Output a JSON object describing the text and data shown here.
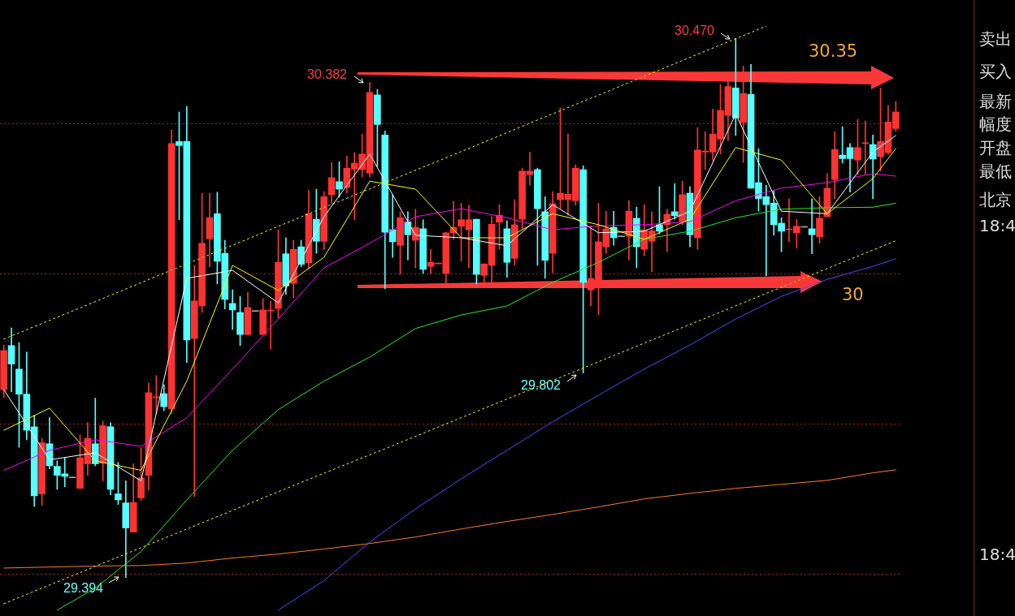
{
  "chart_data": {
    "type": "candlestick",
    "categories": [
      null,
      null,
      null,
      null,
      null,
      null,
      null,
      null,
      null,
      null,
      null,
      null,
      null,
      null,
      null,
      null,
      null,
      null,
      null,
      null,
      null,
      null,
      null,
      null,
      null,
      null,
      null,
      null,
      null,
      null,
      null,
      null,
      null,
      null,
      null,
      null,
      null,
      null,
      null,
      null,
      null,
      null,
      null,
      null,
      null,
      null,
      null,
      null,
      null,
      null,
      null,
      null,
      null,
      null,
      null,
      null,
      null,
      null,
      null,
      null,
      null,
      null,
      null,
      null,
      null,
      null,
      null,
      null,
      null,
      null,
      null,
      null,
      null,
      null,
      null,
      null,
      null,
      null,
      null,
      null,
      null,
      null,
      null,
      null,
      null,
      null,
      null,
      null,
      null,
      null,
      null,
      null,
      null,
      null,
      null,
      null,
      null,
      null,
      null,
      null,
      null,
      null,
      null,
      null,
      null,
      null,
      null,
      null,
      null,
      null,
      null,
      null,
      null,
      null,
      null,
      null,
      null,
      null
    ],
    "ohlc": [
      [
        29.769,
        29.858,
        29.753,
        29.847
      ],
      [
        29.857,
        29.892,
        29.765,
        29.82
      ],
      [
        29.81,
        29.863,
        29.654,
        29.76
      ],
      [
        29.76,
        29.844,
        29.669,
        29.688
      ],
      [
        29.695,
        29.718,
        29.536,
        29.557
      ],
      [
        29.561,
        29.672,
        29.538,
        29.663
      ],
      [
        29.661,
        29.713,
        29.611,
        29.617
      ],
      [
        29.616,
        29.627,
        29.57,
        29.598
      ],
      [
        29.601,
        29.633,
        29.575,
        29.596
      ],
      [
        29.593,
        29.593,
        29.593,
        29.593
      ],
      [
        29.572,
        29.679,
        29.572,
        29.633
      ],
      [
        29.621,
        29.703,
        29.598,
        29.672
      ],
      [
        29.661,
        29.752,
        29.617,
        29.621
      ],
      [
        29.622,
        29.706,
        29.587,
        29.697
      ],
      [
        29.695,
        29.703,
        29.559,
        29.57
      ],
      [
        29.561,
        29.624,
        29.54,
        29.549
      ],
      [
        29.543,
        29.587,
        29.394,
        29.493
      ],
      [
        29.485,
        29.621,
        29.485,
        29.544
      ],
      [
        29.553,
        29.653,
        29.548,
        29.593
      ],
      [
        29.598,
        29.782,
        29.569,
        29.763
      ],
      [
        29.753,
        29.797,
        29.721,
        29.753
      ],
      [
        29.761,
        29.779,
        29.727,
        29.735
      ],
      [
        29.731,
        30.287,
        29.721,
        30.26
      ],
      [
        30.264,
        30.323,
        30.108,
        30.256
      ],
      [
        30.264,
        30.334,
        29.823,
        29.868
      ],
      [
        29.871,
        30.017,
        29.556,
        29.946
      ],
      [
        29.936,
        30.161,
        29.923,
        30.061
      ],
      [
        30.07,
        30.161,
        30.014,
        30.112
      ],
      [
        30.12,
        30.163,
        29.98,
        30.025
      ],
      [
        30.041,
        30.067,
        29.93,
        29.949
      ],
      [
        29.941,
        29.968,
        29.889,
        29.928
      ],
      [
        29.923,
        29.955,
        29.857,
        29.879
      ],
      [
        29.879,
        29.963,
        29.879,
        29.933
      ],
      [
        29.925,
        29.925,
        29.925,
        29.925
      ],
      [
        29.879,
        29.951,
        29.879,
        29.928
      ],
      [
        29.926,
        29.946,
        29.85,
        29.926
      ],
      [
        29.931,
        30.088,
        29.912,
        30.023
      ],
      [
        30.04,
        30.072,
        29.959,
        29.976
      ],
      [
        29.981,
        30.067,
        29.952,
        30.049
      ],
      [
        30.054,
        30.067,
        30.014,
        30.019
      ],
      [
        30.022,
        30.167,
        30.01,
        30.12
      ],
      [
        30.109,
        30.169,
        30.041,
        30.065
      ],
      [
        30.065,
        30.164,
        30.048,
        30.154
      ],
      [
        30.158,
        30.222,
        30.141,
        30.192
      ],
      [
        30.184,
        30.224,
        30.153,
        30.169
      ],
      [
        30.172,
        30.235,
        30.161,
        30.211
      ],
      [
        30.209,
        30.242,
        30.108,
        30.221
      ],
      [
        30.208,
        30.279,
        30.193,
        30.239
      ],
      [
        30.201,
        30.382,
        30.193,
        30.362
      ],
      [
        30.357,
        30.368,
        30.214,
        30.298
      ],
      [
        30.277,
        30.285,
        29.97,
        30.083
      ],
      [
        30.088,
        30.158,
        30.033,
        30.064
      ],
      [
        30.057,
        30.124,
        29.999,
        30.112
      ],
      [
        30.104,
        30.124,
        30.028,
        30.078
      ],
      [
        30.067,
        30.129,
        30.012,
        30.093
      ],
      [
        30.09,
        30.108,
        30.001,
        30.009
      ],
      [
        30.015,
        30.049,
        30.001,
        30.023
      ],
      [
        30.02,
        30.02,
        30.02,
        30.02
      ],
      [
        30.001,
        30.083,
        29.981,
        30.082
      ],
      [
        30.082,
        30.145,
        30.069,
        30.093
      ],
      [
        30.095,
        30.141,
        30.025,
        30.108
      ],
      [
        30.088,
        30.137,
        30.012,
        30.108
      ],
      [
        30.109,
        30.109,
        29.98,
        29.999
      ],
      [
        29.997,
        30.02,
        29.98,
        30.02
      ],
      [
        30.017,
        30.114,
        29.98,
        30.099
      ],
      [
        30.103,
        30.138,
        30.049,
        30.117
      ],
      [
        30.09,
        30.106,
        29.993,
        30.023
      ],
      [
        30.031,
        30.148,
        30.017,
        30.098
      ],
      [
        30.109,
        30.211,
        30.09,
        30.205
      ],
      [
        30.198,
        30.243,
        30.177,
        30.205
      ],
      [
        30.208,
        30.211,
        30.017,
        30.13
      ],
      [
        30.124,
        30.154,
        29.991,
        30.027
      ],
      [
        30.041,
        30.164,
        30.002,
        30.14
      ],
      [
        30.148,
        30.331,
        30.13,
        30.161
      ],
      [
        30.148,
        30.279,
        30.117,
        30.159
      ],
      [
        30.146,
        30.218,
        30.137,
        30.211
      ],
      [
        30.208,
        30.216,
        29.802,
        29.983
      ],
      [
        29.968,
        30.096,
        29.936,
        29.991
      ],
      [
        29.972,
        30.141,
        29.918,
        30.064
      ],
      [
        30.054,
        30.125,
        30.041,
        30.09
      ],
      [
        30.093,
        30.125,
        30.057,
        30.072
      ],
      [
        30.074,
        30.074,
        30.074,
        30.074
      ],
      [
        30.075,
        30.146,
        30.028,
        30.125
      ],
      [
        30.111,
        30.133,
        30.012,
        30.054
      ],
      [
        30.049,
        30.138,
        30.036,
        30.088
      ],
      [
        30.065,
        30.124,
        30.004,
        30.086
      ],
      [
        30.098,
        30.174,
        30.08,
        30.085
      ],
      [
        30.098,
        30.129,
        30.044,
        30.119
      ],
      [
        30.124,
        30.18,
        30.109,
        30.116
      ],
      [
        30.104,
        30.185,
        30.098,
        30.158
      ],
      [
        30.161,
        30.174,
        30.054,
        30.078
      ],
      [
        30.072,
        30.292,
        30.049,
        30.247
      ],
      [
        30.243,
        30.284,
        30.208,
        30.245
      ],
      [
        30.243,
        30.329,
        30.226,
        30.279
      ],
      [
        30.269,
        30.378,
        30.239,
        30.326
      ],
      [
        30.316,
        30.386,
        30.266,
        30.374
      ],
      [
        30.371,
        30.47,
        30.276,
        30.311
      ],
      [
        30.302,
        30.415,
        30.222,
        30.36
      ],
      [
        30.358,
        30.418,
        30.171,
        30.171
      ],
      [
        30.182,
        30.25,
        30.125,
        30.15
      ],
      [
        30.154,
        30.177,
        29.996,
        30.138
      ],
      [
        30.141,
        30.166,
        30.077,
        30.098
      ],
      [
        30.101,
        30.112,
        30.044,
        30.085
      ],
      [
        30.088,
        30.15,
        30.064,
        30.088
      ],
      [
        30.082,
        30.109,
        30.051,
        30.095
      ],
      [
        30.093,
        30.093,
        30.093,
        30.093
      ],
      [
        30.09,
        30.15,
        30.04,
        30.078
      ],
      [
        30.074,
        30.154,
        30.061,
        30.111
      ],
      [
        30.114,
        30.2,
        30.114,
        30.171
      ],
      [
        30.188,
        30.284,
        30.15,
        30.248
      ],
      [
        30.237,
        30.294,
        30.221,
        30.23
      ],
      [
        30.252,
        30.26,
        30.163,
        30.23
      ],
      [
        30.227,
        30.308,
        30.198,
        30.252
      ],
      [
        30.26,
        30.305,
        30.198,
        30.26
      ],
      [
        30.258,
        30.277,
        30.15,
        30.229
      ],
      [
        30.234,
        30.371,
        30.205,
        30.264
      ],
      [
        30.242,
        30.336,
        30.239,
        30.303
      ],
      [
        30.29,
        30.344,
        30.284,
        30.323
      ]
    ],
    "colors": [
      "#ff3232",
      "#54ffff",
      "#54ffff",
      "#54ffff",
      "#54ffff",
      "#ff3232",
      "#54ffff",
      "#54ffff",
      "#54ffff",
      "#a0a0a0",
      "#ff3232",
      "#ff3232",
      "#54ffff",
      "#ff3232",
      "#54ffff",
      "#54ffff",
      "#54ffff",
      "#ff3232",
      "#ff3232",
      "#ff3232",
      "#ff3232",
      "#54ffff",
      "#ff3232",
      "#54ffff",
      "#54ffff",
      "#ff3232",
      "#ff3232",
      "#ff3232",
      "#54ffff",
      "#54ffff",
      "#54ffff",
      "#54ffff",
      "#ff3232",
      "#a0a0a0",
      "#ff3232",
      "#ff3232",
      "#ff3232",
      "#54ffff",
      "#ff3232",
      "#54ffff",
      "#ff3232",
      "#54ffff",
      "#ff3232",
      "#ff3232",
      "#54ffff",
      "#ff3232",
      "#ff3232",
      "#ff3232",
      "#ff3232",
      "#54ffff",
      "#54ffff",
      "#54ffff",
      "#ff3232",
      "#54ffff",
      "#ff3232",
      "#54ffff",
      "#ff3232",
      "#ff3232",
      "#ff3232",
      "#ff3232",
      "#ff3232",
      "#ff3232",
      "#54ffff",
      "#ff3232",
      "#ff3232",
      "#ff3232",
      "#54ffff",
      "#ff3232",
      "#ff3232",
      "#ff3232",
      "#54ffff",
      "#54ffff",
      "#ff3232",
      "#ff3232",
      "#ff3232",
      "#ff3232",
      "#54ffff",
      "#ff3232",
      "#ff3232",
      "#ff3232",
      "#54ffff",
      "#a0a0a0",
      "#ff3232",
      "#54ffff",
      "#ff3232",
      "#ff3232",
      "#54ffff",
      "#ff3232",
      "#54ffff",
      "#ff3232",
      "#54ffff",
      "#ff3232",
      "#ff3232",
      "#ff3232",
      "#ff3232",
      "#ff3232",
      "#54ffff",
      "#ff3232",
      "#54ffff",
      "#54ffff",
      "#54ffff",
      "#54ffff",
      "#54ffff",
      "#ff3232",
      "#ff3232",
      "#a0a0a0",
      "#54ffff",
      "#ff3232",
      "#ff3232",
      "#ff3232",
      "#54ffff",
      "#54ffff",
      "#ff3232",
      "#ff3232",
      "#54ffff",
      "#ff3232",
      "#ff3232",
      "#ff3232"
    ],
    "series": [
      {
        "type": "line",
        "color": "#ffffff",
        "line_style": "solid",
        "values": [
          29.769,
          null,
          null,
          null,
          null,
          null,
          29.629,
          null,
          null,
          null,
          null,
          null,
          29.643,
          null,
          null,
          null,
          null,
          null,
          29.587,
          null,
          null,
          null,
          null,
          null,
          29.991,
          null,
          null,
          null,
          null,
          null,
          30.007,
          null,
          null,
          null,
          null,
          null,
          29.942,
          null,
          null,
          null,
          null,
          null,
          30.114,
          null,
          null,
          null,
          null,
          null,
          30.239,
          null,
          null,
          null,
          null,
          null,
          30.077,
          null,
          null,
          null,
          null,
          null,
          30.072,
          null,
          null,
          null,
          null,
          null,
          30.056,
          null,
          null,
          null,
          null,
          null,
          30.138,
          null,
          null,
          null,
          null,
          null,
          30.082,
          null,
          null,
          null,
          null,
          null,
          30.085,
          null,
          null,
          null,
          null,
          null,
          30.125,
          null,
          null,
          null,
          null,
          null,
          30.319,
          null,
          null,
          null,
          null,
          null,
          30.125,
          null,
          null,
          null,
          null,
          null,
          30.12,
          null,
          null,
          null,
          null,
          null,
          30.243,
          null,
          null,
          30.276
        ]
      },
      {
        "type": "line",
        "color": "#ffff00",
        "line_style": "solid",
        "values": [
          29.688,
          null,
          null,
          null,
          null,
          null,
          29.732,
          null,
          null,
          null,
          null,
          null,
          29.627,
          null,
          null,
          null,
          null,
          null,
          29.608,
          null,
          null,
          null,
          null,
          null,
          29.786,
          null,
          null,
          null,
          null,
          null,
          30.017,
          null,
          null,
          null,
          null,
          null,
          29.967,
          null,
          null,
          null,
          null,
          null,
          30.033,
          null,
          null,
          null,
          null,
          null,
          30.185,
          null,
          null,
          null,
          null,
          null,
          30.169,
          null,
          null,
          null,
          null,
          null,
          30.072,
          null,
          null,
          null,
          null,
          null,
          30.072,
          null,
          null,
          null,
          null,
          null,
          30.12,
          null,
          null,
          null,
          null,
          null,
          30.098,
          null,
          null,
          null,
          null,
          null,
          30.069,
          null,
          null,
          null,
          null,
          null,
          30.109,
          null,
          null,
          null,
          null,
          null,
          30.252,
          null,
          null,
          null,
          null,
          null,
          30.227,
          null,
          null,
          null,
          null,
          null,
          30.12,
          null,
          null,
          null,
          null,
          null,
          30.19,
          null,
          null,
          30.25
        ]
      },
      {
        "type": "line",
        "color": "#ff00ff",
        "line_style": "solid",
        "values": [
          29.608,
          null,
          null,
          null,
          null,
          null,
          29.648,
          null,
          null,
          null,
          null,
          null,
          29.669,
          null,
          null,
          null,
          null,
          null,
          29.656,
          null,
          null,
          null,
          null,
          null,
          29.713,
          null,
          null,
          null,
          null,
          null,
          29.81,
          null,
          null,
          null,
          null,
          null,
          29.91,
          null,
          null,
          null,
          null,
          null,
          30.012,
          null,
          null,
          null,
          null,
          null,
          30.061,
          null,
          null,
          null,
          null,
          null,
          30.114,
          null,
          null,
          null,
          null,
          null,
          30.13,
          null,
          null,
          null,
          null,
          null,
          30.112,
          null,
          null,
          null,
          null,
          null,
          30.088,
          null,
          null,
          null,
          null,
          null,
          30.096,
          null,
          null,
          null,
          null,
          null,
          30.098,
          null,
          null,
          null,
          null,
          null,
          30.104,
          null,
          null,
          null,
          null,
          null,
          30.146,
          null,
          null,
          null,
          null,
          null,
          30.171,
          null,
          null,
          null,
          null,
          null,
          30.182,
          null,
          null,
          null,
          null,
          null,
          30.2,
          null,
          null,
          30.195
        ]
      },
      {
        "type": "line",
        "color": "#22ee22",
        "line_style": "solid",
        "values": [
          null,
          null,
          null,
          null,
          null,
          null,
          null,
          29.329,
          null,
          null,
          null,
          null,
          29.373,
          null,
          null,
          null,
          null,
          null,
          29.446,
          null,
          null,
          null,
          null,
          null,
          29.549,
          null,
          null,
          null,
          null,
          null,
          29.648,
          null,
          null,
          null,
          null,
          null,
          29.729,
          null,
          null,
          null,
          null,
          null,
          29.786,
          null,
          null,
          null,
          null,
          null,
          29.834,
          null,
          null,
          null,
          null,
          null,
          29.891,
          null,
          null,
          null,
          null,
          null,
          29.918,
          null,
          null,
          null,
          null,
          null,
          29.936,
          null,
          null,
          null,
          null,
          null,
          29.983,
          null,
          null,
          null,
          null,
          null,
          30.023,
          null,
          null,
          null,
          null,
          null,
          30.069,
          null,
          null,
          null,
          null,
          null,
          30.085,
          null,
          null,
          null,
          null,
          null,
          30.112,
          null,
          null,
          null,
          null,
          null,
          30.129,
          null,
          null,
          null,
          null,
          null,
          30.132,
          null,
          null,
          null,
          null,
          null,
          30.133,
          null,
          null,
          30.141
        ]
      },
      {
        "type": "line",
        "color": "#6a3cff",
        "line_style": "solid",
        "values": [
          null,
          null,
          null,
          null,
          null,
          null,
          null,
          null,
          null,
          null,
          null,
          null,
          null,
          null,
          null,
          null,
          null,
          null,
          null,
          null,
          null,
          null,
          null,
          null,
          null,
          null,
          null,
          null,
          null,
          null,
          null,
          null,
          null,
          null,
          null,
          null,
          29.329,
          null,
          null,
          null,
          null,
          null,
          29.388,
          null,
          null,
          null,
          null,
          null,
          29.465,
          null,
          null,
          null,
          null,
          null,
          29.531,
          null,
          null,
          null,
          null,
          null,
          29.591,
          null,
          null,
          null,
          null,
          null,
          29.648,
          null,
          null,
          null,
          null,
          null,
          29.705,
          null,
          null,
          null,
          null,
          null,
          29.758,
          null,
          null,
          null,
          null,
          null,
          29.81,
          null,
          null,
          null,
          null,
          null,
          29.858,
          null,
          null,
          null,
          null,
          null,
          29.91,
          null,
          null,
          null,
          null,
          null,
          29.955,
          null,
          null,
          null,
          null,
          null,
          29.989,
          null,
          null,
          null,
          null,
          null,
          30.015,
          null,
          null,
          30.03
        ]
      },
      {
        "type": "line",
        "color": "#ff7a22",
        "line_style": "solid",
        "values": [
          29.413,
          null,
          null,
          null,
          null,
          null,
          29.415,
          null,
          null,
          null,
          null,
          null,
          29.417,
          null,
          null,
          null,
          null,
          null,
          29.418,
          null,
          null,
          null,
          null,
          null,
          29.423,
          null,
          null,
          null,
          null,
          null,
          29.433,
          null,
          null,
          null,
          null,
          null,
          29.441,
          null,
          null,
          null,
          null,
          null,
          29.451,
          null,
          null,
          null,
          null,
          null,
          29.462,
          null,
          null,
          null,
          null,
          null,
          29.475,
          null,
          null,
          null,
          null,
          null,
          29.491,
          null,
          null,
          null,
          null,
          null,
          29.506,
          null,
          null,
          null,
          null,
          null,
          29.52,
          null,
          null,
          null,
          null,
          null,
          29.535,
          null,
          null,
          null,
          null,
          null,
          29.551,
          null,
          null,
          null,
          null,
          null,
          29.562,
          null,
          null,
          null,
          null,
          null,
          29.572,
          null,
          null,
          null,
          null,
          null,
          29.58,
          null,
          null,
          null,
          null,
          null,
          29.588,
          null,
          null,
          null,
          null,
          null,
          29.603,
          null,
          null,
          29.609
        ]
      },
      {
        "type": "line",
        "color": "#ffff00",
        "line_style": "dotted",
        "values": [
          29.87,
          null,
          null,
          null,
          null,
          null,
          null,
          null,
          null,
          null,
          29.932,
          null,
          null,
          null,
          null,
          null,
          null,
          null,
          null,
          null,
          29.995,
          null,
          null,
          null,
          null,
          null,
          null,
          null,
          null,
          null,
          30.057,
          null,
          null,
          null,
          null,
          null,
          null,
          null,
          null,
          null,
          30.12,
          null,
          null,
          null,
          null,
          null,
          null,
          null,
          null,
          null,
          30.182,
          null,
          null,
          null,
          null,
          null,
          null,
          null,
          null,
          null,
          30.244,
          null,
          null,
          null,
          null,
          null,
          null,
          null,
          null,
          null,
          30.307,
          null,
          null,
          null,
          null,
          null,
          null,
          null,
          null,
          null,
          30.369,
          null,
          null,
          null,
          null,
          null,
          null,
          null,
          null,
          null,
          30.432,
          null,
          null,
          null,
          null,
          null,
          null,
          null,
          null,
          null,
          30.494,
          null,
          null,
          null,
          null,
          null,
          null,
          null,
          null,
          null,
          null,
          null,
          null,
          null,
          null,
          null,
          null,
          null
        ]
      },
      {
        "type": "line",
        "color": "#ffff00",
        "line_style": "dotted",
        "values": [
          29.342,
          null,
          null,
          null,
          null,
          null,
          null,
          null,
          null,
          null,
          29.404,
          null,
          null,
          null,
          null,
          null,
          null,
          null,
          null,
          null,
          29.466,
          null,
          null,
          null,
          null,
          null,
          null,
          null,
          null,
          null,
          29.528,
          null,
          null,
          null,
          null,
          null,
          null,
          null,
          null,
          null,
          29.59,
          null,
          null,
          null,
          null,
          null,
          null,
          null,
          null,
          null,
          29.651,
          null,
          null,
          null,
          null,
          null,
          null,
          null,
          null,
          null,
          29.713,
          null,
          null,
          null,
          null,
          null,
          null,
          null,
          null,
          null,
          29.775,
          null,
          null,
          null,
          null,
          null,
          null,
          null,
          null,
          null,
          29.837,
          null,
          null,
          null,
          null,
          null,
          null,
          null,
          null,
          null,
          29.899,
          null,
          null,
          null,
          null,
          null,
          null,
          null,
          null,
          null,
          29.961,
          null,
          null,
          null,
          null,
          null,
          null,
          null,
          null,
          null,
          30.023,
          null,
          null,
          null,
          null,
          null,
          null,
          30.066
        ]
      }
    ],
    "yticks": [
      {
        "value": 29.4,
        "label": null
      },
      {
        "value": 29.7,
        "label": null
      },
      {
        "value": 30.0,
        "label": null
      },
      {
        "value": 30.3,
        "label": null
      }
    ],
    "grid": "y",
    "tick_labels": false,
    "marker": "none",
    "annotations": [
      "30.470",
      "30.382",
      "29.802",
      "29.394",
      "30.35",
      "30",
      "卖出",
      "买入",
      "最新",
      "幅度",
      "开盘",
      "最低",
      "北京",
      "18:4",
      "18:4"
    ]
  }
}
